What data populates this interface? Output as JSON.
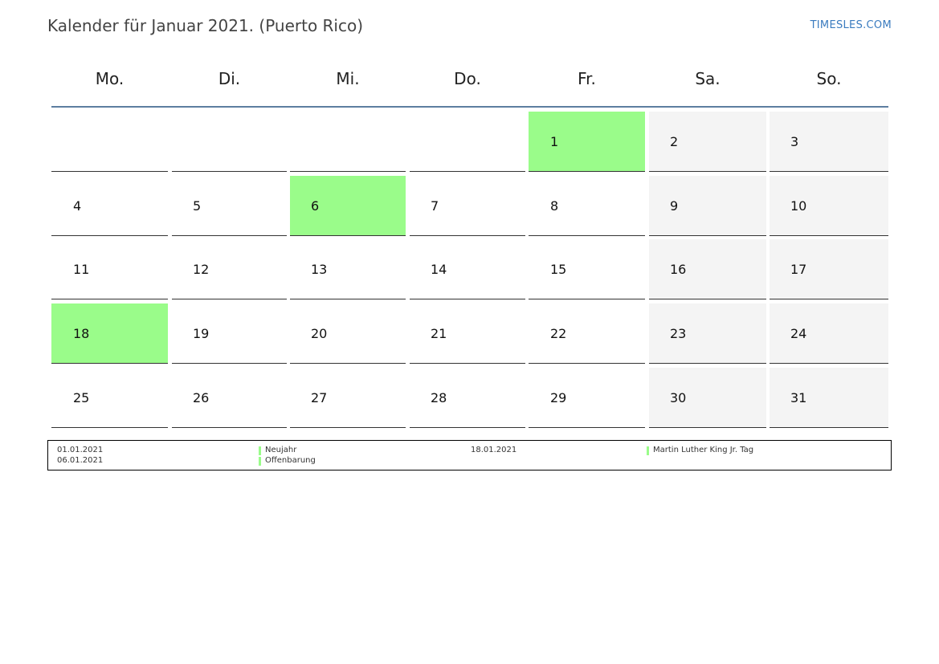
{
  "title": "Kalender für Januar 2021. (Puerto Rico)",
  "brand": "TIMESLES.COM",
  "colors": {
    "holiday": "#9afc8a",
    "weekend": "#f4f4f4",
    "header_rule": "#5d7ea0",
    "brand": "#3a7bbf"
  },
  "weekdays": [
    "Mo.",
    "Di.",
    "Mi.",
    "Do.",
    "Fr.",
    "Sa.",
    "So."
  ],
  "weeks": [
    [
      {
        "day": "",
        "type": "empty"
      },
      {
        "day": "",
        "type": "empty"
      },
      {
        "day": "",
        "type": "empty"
      },
      {
        "day": "",
        "type": "empty"
      },
      {
        "day": "1",
        "type": "holiday"
      },
      {
        "day": "2",
        "type": "weekend"
      },
      {
        "day": "3",
        "type": "weekend"
      }
    ],
    [
      {
        "day": "4",
        "type": "normal"
      },
      {
        "day": "5",
        "type": "normal"
      },
      {
        "day": "6",
        "type": "holiday"
      },
      {
        "day": "7",
        "type": "normal"
      },
      {
        "day": "8",
        "type": "normal"
      },
      {
        "day": "9",
        "type": "weekend"
      },
      {
        "day": "10",
        "type": "weekend"
      }
    ],
    [
      {
        "day": "11",
        "type": "normal"
      },
      {
        "day": "12",
        "type": "normal"
      },
      {
        "day": "13",
        "type": "normal"
      },
      {
        "day": "14",
        "type": "normal"
      },
      {
        "day": "15",
        "type": "normal"
      },
      {
        "day": "16",
        "type": "weekend"
      },
      {
        "day": "17",
        "type": "weekend"
      }
    ],
    [
      {
        "day": "18",
        "type": "holiday"
      },
      {
        "day": "19",
        "type": "normal"
      },
      {
        "day": "20",
        "type": "normal"
      },
      {
        "day": "21",
        "type": "normal"
      },
      {
        "day": "22",
        "type": "normal"
      },
      {
        "day": "23",
        "type": "weekend"
      },
      {
        "day": "24",
        "type": "weekend"
      }
    ],
    [
      {
        "day": "25",
        "type": "normal"
      },
      {
        "day": "26",
        "type": "normal"
      },
      {
        "day": "27",
        "type": "normal"
      },
      {
        "day": "28",
        "type": "normal"
      },
      {
        "day": "29",
        "type": "normal"
      },
      {
        "day": "30",
        "type": "weekend"
      },
      {
        "day": "31",
        "type": "weekend"
      }
    ]
  ],
  "holidays": [
    {
      "date": "01.01.2021",
      "name": "Neujahr"
    },
    {
      "date": "06.01.2021",
      "name": "Offenbarung"
    },
    {
      "date": "18.01.2021",
      "name": "Martin Luther King Jr. Tag"
    }
  ]
}
